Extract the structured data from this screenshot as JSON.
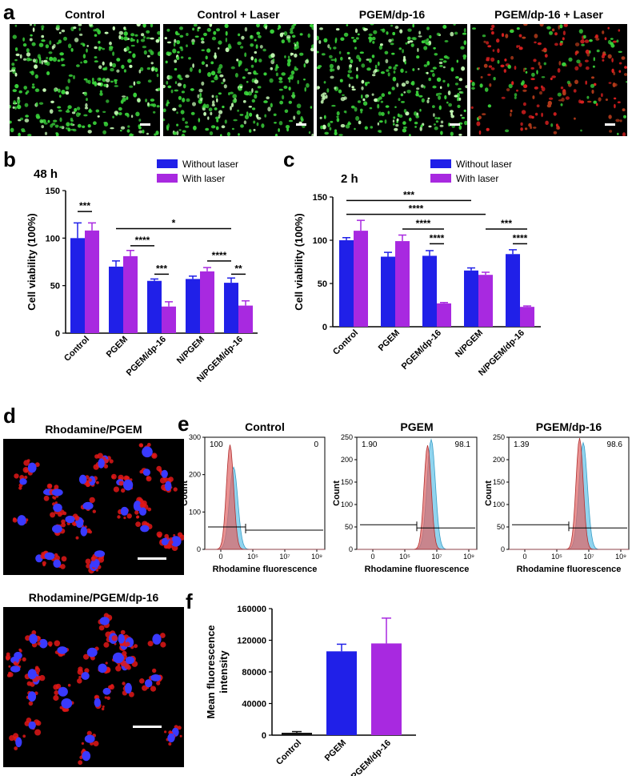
{
  "panel_a": {
    "letter": "a",
    "images": [
      {
        "title": "Control",
        "dominant": "green"
      },
      {
        "title": "Control + Laser",
        "dominant": "green"
      },
      {
        "title": "PGEM/dp-16",
        "dominant": "green"
      },
      {
        "title": "PGEM/dp-16 + Laser",
        "dominant": "red"
      }
    ]
  },
  "panel_d": {
    "letter": "d",
    "images": [
      {
        "title": "Rhodamine/PGEM"
      },
      {
        "title": "Rhodamine/PGEM/dp-16"
      }
    ]
  },
  "colors": {
    "without_laser": "#2020e8",
    "with_laser": "#a829e0",
    "control_bar": "#111111",
    "flow_red": "#e06464",
    "flow_blue": "#6cc6e8",
    "live_green": "#39d23a",
    "dead_red": "#e02020",
    "nucleus_blue": "#3a3aff",
    "rhodamine_red": "#e01818"
  },
  "chart_data": [
    {
      "id": "b",
      "letter": "b",
      "type": "bar",
      "title": "48 h",
      "ylabel": "Cell viability (100%)",
      "ylim": [
        0,
        150
      ],
      "yticks": [
        "0",
        "50",
        "100",
        "150"
      ],
      "categories": [
        "Control",
        "PGEM",
        "PGEM/dp-16",
        "N/PGEM",
        "N/PGEM/dp-16"
      ],
      "series": [
        {
          "name": "Without laser",
          "values": [
            100,
            70,
            55,
            57,
            53
          ],
          "errors": [
            16,
            6,
            2,
            3,
            5
          ]
        },
        {
          "name": "With laser",
          "values": [
            108,
            81,
            28,
            65,
            29
          ],
          "errors": [
            8,
            6,
            5,
            4,
            5
          ]
        }
      ],
      "legend": "top-right",
      "significance": [
        {
          "label": "***",
          "from": [
            0,
            0
          ],
          "to": [
            0,
            1
          ],
          "y": 128
        },
        {
          "label": "*",
          "from": [
            1,
            0
          ],
          "to": [
            4,
            0
          ],
          "y": 110
        },
        {
          "label": "****",
          "from": [
            1,
            1
          ],
          "to": [
            2,
            0
          ],
          "y": 92
        },
        {
          "label": "****",
          "from": [
            3,
            1
          ],
          "to": [
            4,
            0
          ],
          "y": 76
        },
        {
          "label": "***",
          "from": [
            2,
            0
          ],
          "to": [
            2,
            1
          ],
          "y": 62
        },
        {
          "label": "**",
          "from": [
            4,
            0
          ],
          "to": [
            4,
            1
          ],
          "y": 62
        }
      ]
    },
    {
      "id": "c",
      "letter": "c",
      "type": "bar",
      "title": "2 h",
      "ylabel": "Cell viability (100%)",
      "ylim": [
        0,
        150
      ],
      "yticks": [
        "0",
        "50",
        "100",
        "150"
      ],
      "categories": [
        "Control",
        "PGEM",
        "PGEM/dp-16",
        "N/PGEM",
        "N/PGEM/dp-16"
      ],
      "series": [
        {
          "name": "Without laser",
          "values": [
            100,
            81,
            82,
            65,
            84
          ],
          "errors": [
            3,
            5,
            6,
            3,
            5
          ]
        },
        {
          "name": "With laser",
          "values": [
            111,
            99,
            27,
            60,
            23
          ],
          "errors": [
            12,
            7,
            1,
            3,
            1
          ]
        }
      ],
      "legend": "top-right",
      "significance": [
        {
          "label": "***",
          "from": [
            0,
            0
          ],
          "to": [
            3,
            0
          ],
          "y": 146
        },
        {
          "label": "****",
          "from": [
            0,
            0
          ],
          "to": [
            3,
            1
          ],
          "y": 130
        },
        {
          "label": "****",
          "from": [
            1,
            1
          ],
          "to": [
            2,
            1
          ],
          "y": 113
        },
        {
          "label": "****",
          "from": [
            2,
            0
          ],
          "to": [
            2,
            1
          ],
          "y": 96
        },
        {
          "label": "***",
          "from": [
            3,
            1
          ],
          "to": [
            4,
            1
          ],
          "y": 113
        },
        {
          "label": "****",
          "from": [
            4,
            0
          ],
          "to": [
            4,
            1
          ],
          "y": 96
        }
      ]
    },
    {
      "id": "e",
      "letter": "e",
      "type": "area",
      "xlabel": "Rhodamine fluorescence",
      "ylabel": "Count",
      "xticks": [
        "0",
        "10⁵",
        "10⁷",
        "10⁹"
      ],
      "subplots": [
        {
          "title": "Control",
          "ylim": [
            0,
            300
          ],
          "yticks": [
            "0",
            "100",
            "200",
            "300"
          ],
          "gate_left": "100",
          "gate_right": "0",
          "peak_x": 0.22,
          "red_peak": 280,
          "blue_peak": 220
        },
        {
          "title": "PGEM",
          "ylim": [
            0,
            250
          ],
          "yticks": [
            "0",
            "50",
            "100",
            "150",
            "200",
            "250"
          ],
          "gate_left": "1.90",
          "gate_right": "98.1",
          "peak_x": 0.6,
          "red_peak": 232,
          "blue_peak": 245
        },
        {
          "title": "PGEM/dp-16",
          "ylim": [
            0,
            250
          ],
          "yticks": [
            "0",
            "50",
            "100",
            "150",
            "200",
            "250"
          ],
          "gate_left": "1.39",
          "gate_right": "98.6",
          "peak_x": 0.6,
          "red_peak": 248,
          "blue_peak": 238
        }
      ]
    },
    {
      "id": "f",
      "letter": "f",
      "type": "bar",
      "ylabel": "Mean fluorescence intensity",
      "ylim": [
        0,
        160000
      ],
      "yticks": [
        "0",
        "40000",
        "80000",
        "120000",
        "160000"
      ],
      "categories": [
        "Control",
        "PGEM",
        "PGEM/dp-16"
      ],
      "values": [
        3000,
        106000,
        116000
      ],
      "errors": [
        1500,
        9000,
        32000
      ]
    }
  ]
}
